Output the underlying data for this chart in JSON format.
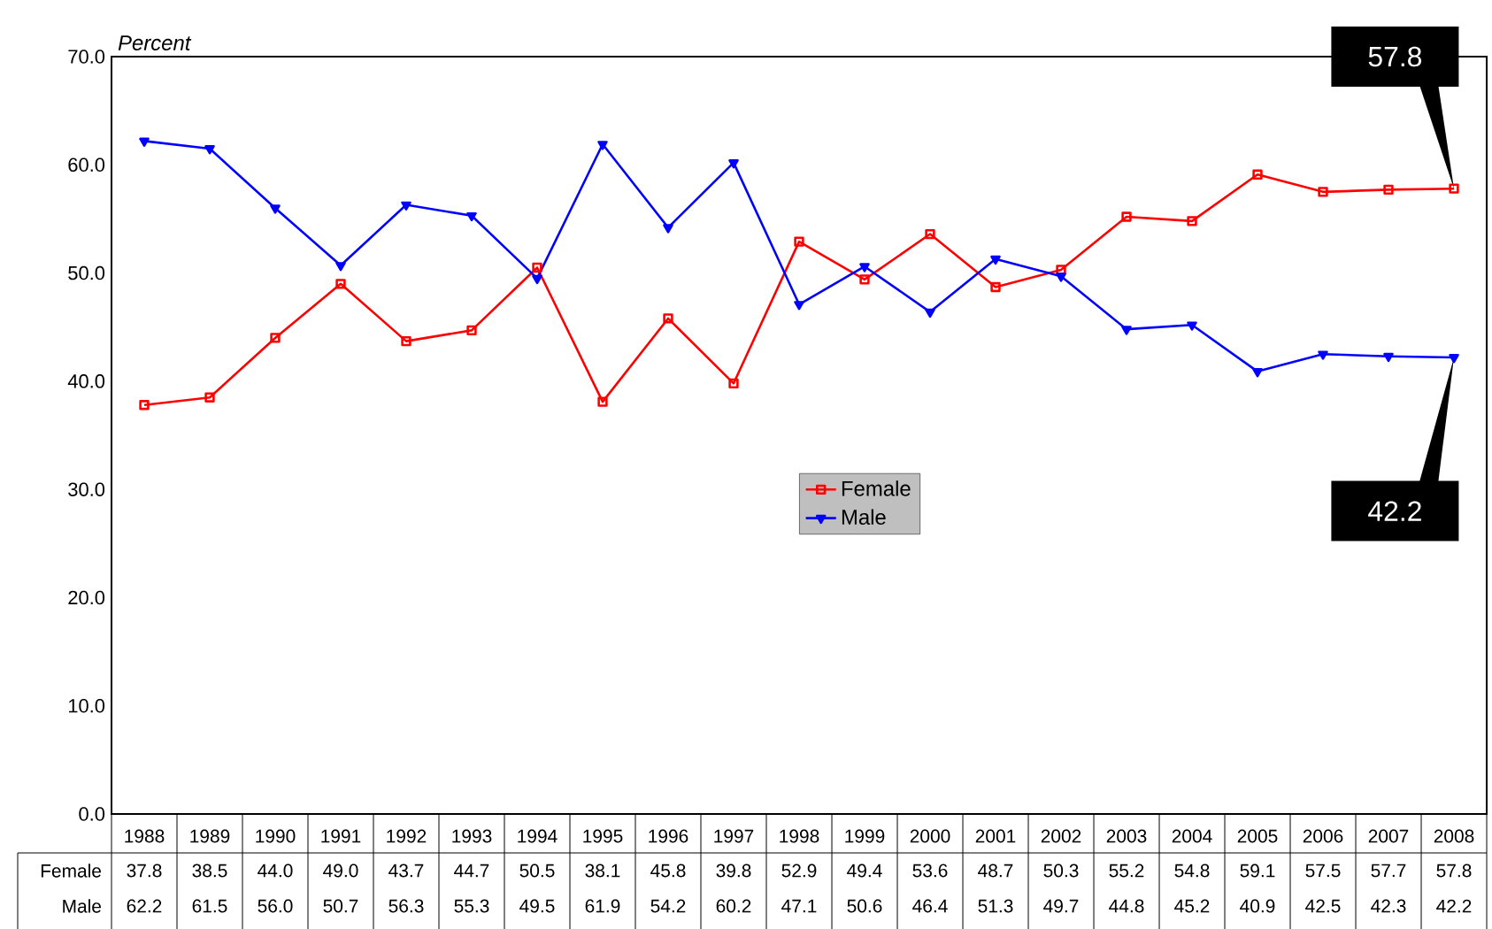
{
  "chart_data": {
    "type": "line",
    "ylabel": "Percent",
    "categories": [
      "1988",
      "1989",
      "1990",
      "1991",
      "1992",
      "1993",
      "1994",
      "1995",
      "1996",
      "1997",
      "1998",
      "1999",
      "2000",
      "2001",
      "2002",
      "2003",
      "2004",
      "2005",
      "2006",
      "2007",
      "2008"
    ],
    "series": [
      {
        "name": "Female",
        "color": "#ff0000",
        "marker": "square",
        "values": [
          37.8,
          38.5,
          44.0,
          49.0,
          43.7,
          44.7,
          50.5,
          38.1,
          45.8,
          39.8,
          52.9,
          49.4,
          53.6,
          48.7,
          50.3,
          55.2,
          54.8,
          59.1,
          57.5,
          57.7,
          57.8
        ],
        "value_labels": [
          "37.8",
          "38.5",
          "44.0",
          "49.0",
          "43.7",
          "44.7",
          "50.5",
          "38.1",
          "45.8",
          "39.8",
          "52.9",
          "49.4",
          "53.6",
          "48.7",
          "50.3",
          "55.2",
          "54.8",
          "59.1",
          "57.5",
          "57.7",
          "57.8"
        ]
      },
      {
        "name": "Male",
        "color": "#0000ff",
        "marker": "triangle",
        "values": [
          62.2,
          61.5,
          56.0,
          50.7,
          56.3,
          55.3,
          49.5,
          61.9,
          54.2,
          60.2,
          47.1,
          50.6,
          46.4,
          51.3,
          49.7,
          44.8,
          45.2,
          40.9,
          42.5,
          42.3,
          42.2
        ],
        "value_labels": [
          "62.2",
          "61.5",
          "56.0",
          "50.7",
          "56.3",
          "55.3",
          "49.5",
          "61.9",
          "54.2",
          "60.2",
          "47.1",
          "50.6",
          "46.4",
          "51.3",
          "49.7",
          "44.8",
          "45.2",
          "40.9",
          "42.5",
          "42.3",
          "42.2"
        ]
      }
    ],
    "ylim": [
      0,
      70
    ],
    "yticks": [
      {
        "value": 0,
        "label": "0.0"
      },
      {
        "value": 10,
        "label": "10.0"
      },
      {
        "value": 20,
        "label": "20.0"
      },
      {
        "value": 30,
        "label": "30.0"
      },
      {
        "value": 40,
        "label": "40.0"
      },
      {
        "value": 50,
        "label": "50.0"
      },
      {
        "value": 60,
        "label": "60.0"
      },
      {
        "value": 70,
        "label": "70.0"
      }
    ],
    "legend": "center",
    "line_style": "solid",
    "annotations": [
      {
        "text": "57.8",
        "x": "2008",
        "y": 57.8
      },
      {
        "text": "42.2",
        "x": "2008",
        "y": 42.2
      }
    ]
  }
}
